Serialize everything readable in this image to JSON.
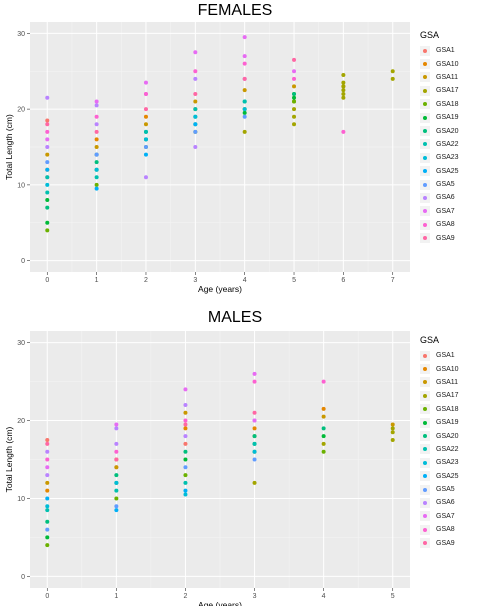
{
  "chart_data": [
    {
      "type": "scatter",
      "title": "FEMALES",
      "xlabel": "Age (years)",
      "ylabel": "Total Length (cm)",
      "xlim": [
        -0.35,
        7.35
      ],
      "ylim": [
        -1.5,
        31.5
      ],
      "x_ticks": [
        0,
        1,
        2,
        3,
        4,
        5,
        6,
        7
      ],
      "y_ticks": [
        0,
        10,
        20,
        30
      ],
      "grid": true,
      "legend_title": "GSA",
      "legend_position": "right",
      "series": [
        {
          "name": "GSA1",
          "color": "#F8766D",
          "x": [
            0,
            0,
            1
          ],
          "y": [
            18.5,
            11,
            14
          ]
        },
        {
          "name": "GSA10",
          "color": "#E58700",
          "x": [
            0,
            1,
            2,
            3
          ],
          "y": [
            12,
            16,
            19,
            20
          ]
        },
        {
          "name": "GSA11",
          "color": "#C99800",
          "x": [
            0,
            1,
            2,
            3,
            4,
            5,
            6
          ],
          "y": [
            14,
            15,
            18,
            21,
            22.5,
            23,
            23
          ]
        },
        {
          "name": "GSA17",
          "color": "#A3A500",
          "x": [
            4,
            5,
            5,
            5,
            5,
            5,
            6,
            6,
            6,
            6,
            6,
            6,
            7,
            7
          ],
          "y": [
            17,
            18,
            19,
            20,
            21,
            22,
            21.5,
            22,
            22.5,
            23,
            23.5,
            24.5,
            24,
            25
          ]
        },
        {
          "name": "GSA18",
          "color": "#6BB100",
          "x": [
            0,
            1,
            2,
            3,
            4,
            5
          ],
          "y": [
            4,
            10,
            15,
            17,
            20,
            21
          ]
        },
        {
          "name": "GSA19",
          "color": "#00BA38",
          "x": [
            0,
            0,
            1,
            2,
            3,
            4,
            5
          ],
          "y": [
            5,
            8,
            12,
            16,
            18,
            19.5,
            21.5
          ]
        },
        {
          "name": "GSA20",
          "color": "#00BF7D",
          "x": [
            0,
            1,
            2,
            3,
            4,
            5
          ],
          "y": [
            7,
            13,
            17,
            19,
            21,
            22
          ]
        },
        {
          "name": "GSA22",
          "color": "#00C0AF",
          "x": [
            0,
            0,
            1,
            1,
            2,
            3,
            4
          ],
          "y": [
            9,
            11,
            11,
            14,
            17,
            20,
            21
          ]
        },
        {
          "name": "GSA23",
          "color": "#00BCD8",
          "x": [
            0,
            1,
            2,
            3,
            4
          ],
          "y": [
            10,
            12,
            16,
            19,
            20
          ]
        },
        {
          "name": "GSA25",
          "color": "#00B0F6",
          "x": [
            0,
            1,
            2,
            3
          ],
          "y": [
            12,
            9.5,
            14,
            18
          ]
        },
        {
          "name": "GSA5",
          "color": "#619CFF",
          "x": [
            0,
            1,
            2,
            3,
            4
          ],
          "y": [
            13,
            14,
            15,
            17,
            19
          ]
        },
        {
          "name": "GSA6",
          "color": "#B983FF",
          "x": [
            0,
            0,
            1,
            1,
            2,
            2,
            3,
            3,
            4
          ],
          "y": [
            21.5,
            15,
            20.5,
            18,
            11,
            22,
            15,
            24,
            24
          ]
        },
        {
          "name": "GSA7",
          "color": "#E76BF3",
          "x": [
            0,
            1,
            2,
            3,
            4,
            4,
            5
          ],
          "y": [
            16,
            21,
            23.5,
            27.5,
            29.5,
            27,
            25
          ]
        },
        {
          "name": "GSA8",
          "color": "#FD61D1",
          "x": [
            0,
            1,
            2,
            3,
            4,
            5,
            6
          ],
          "y": [
            17,
            19,
            22,
            25,
            26,
            24,
            17
          ]
        },
        {
          "name": "GSA9",
          "color": "#FF67A4",
          "x": [
            0,
            1,
            2,
            3,
            4,
            5
          ],
          "y": [
            18,
            17,
            20,
            22,
            24,
            26.5
          ]
        }
      ]
    },
    {
      "type": "scatter",
      "title": "MALES",
      "xlabel": "Age (years)",
      "ylabel": "Total Length (cm)",
      "xlim": [
        -0.25,
        5.25
      ],
      "ylim": [
        -1.5,
        31.5
      ],
      "x_ticks": [
        0,
        1,
        2,
        3,
        4,
        5
      ],
      "y_ticks": [
        0,
        10,
        20,
        30
      ],
      "grid": true,
      "legend_title": "GSA",
      "legend_position": "right",
      "series": [
        {
          "name": "GSA1",
          "color": "#F8766D",
          "x": [
            0,
            1,
            2
          ],
          "y": [
            17.5,
            14,
            17
          ]
        },
        {
          "name": "GSA10",
          "color": "#E58700",
          "x": [
            0,
            1,
            2,
            3,
            4
          ],
          "y": [
            11,
            15,
            19,
            19,
            21.5
          ]
        },
        {
          "name": "GSA11",
          "color": "#C99800",
          "x": [
            0,
            1,
            2,
            3,
            4,
            5
          ],
          "y": [
            12,
            14,
            21,
            18,
            20.5,
            19.5
          ]
        },
        {
          "name": "GSA17",
          "color": "#A3A500",
          "x": [
            3,
            4,
            5,
            5,
            5
          ],
          "y": [
            12,
            17,
            17.5,
            18.5,
            19
          ]
        },
        {
          "name": "GSA18",
          "color": "#6BB100",
          "x": [
            0,
            1,
            2,
            3,
            4
          ],
          "y": [
            4,
            10,
            13,
            16,
            16
          ]
        },
        {
          "name": "GSA19",
          "color": "#00BA38",
          "x": [
            0,
            1,
            2,
            3,
            4
          ],
          "y": [
            5,
            12,
            15,
            17,
            18
          ]
        },
        {
          "name": "GSA20",
          "color": "#00BF7D",
          "x": [
            0,
            1,
            2,
            3,
            4
          ],
          "y": [
            7,
            13,
            16,
            18,
            19
          ]
        },
        {
          "name": "GSA22",
          "color": "#00C0AF",
          "x": [
            0,
            1,
            2,
            3
          ],
          "y": [
            8.5,
            11,
            12,
            17
          ]
        },
        {
          "name": "GSA23",
          "color": "#00BCD8",
          "x": [
            0,
            1,
            2,
            3
          ],
          "y": [
            9,
            12,
            10.5,
            16
          ]
        },
        {
          "name": "GSA25",
          "color": "#00B0F6",
          "x": [
            0,
            1,
            2
          ],
          "y": [
            10,
            8.5,
            11
          ]
        },
        {
          "name": "GSA5",
          "color": "#619CFF",
          "x": [
            0,
            1,
            2,
            3
          ],
          "y": [
            6,
            9,
            14,
            15
          ]
        },
        {
          "name": "GSA6",
          "color": "#B983FF",
          "x": [
            0,
            0,
            1,
            1,
            2,
            2,
            3
          ],
          "y": [
            16,
            13,
            19,
            17,
            18,
            22,
            20
          ]
        },
        {
          "name": "GSA7",
          "color": "#E76BF3",
          "x": [
            0,
            1,
            2,
            3,
            3
          ],
          "y": [
            14,
            19.5,
            24,
            26,
            20
          ]
        },
        {
          "name": "GSA8",
          "color": "#FD61D1",
          "x": [
            0,
            1,
            2,
            3,
            4
          ],
          "y": [
            15,
            16,
            20,
            25,
            25
          ]
        },
        {
          "name": "GSA9",
          "color": "#FF67A4",
          "x": [
            0,
            1,
            2,
            3
          ],
          "y": [
            17,
            15,
            19.5,
            21
          ]
        }
      ]
    }
  ]
}
